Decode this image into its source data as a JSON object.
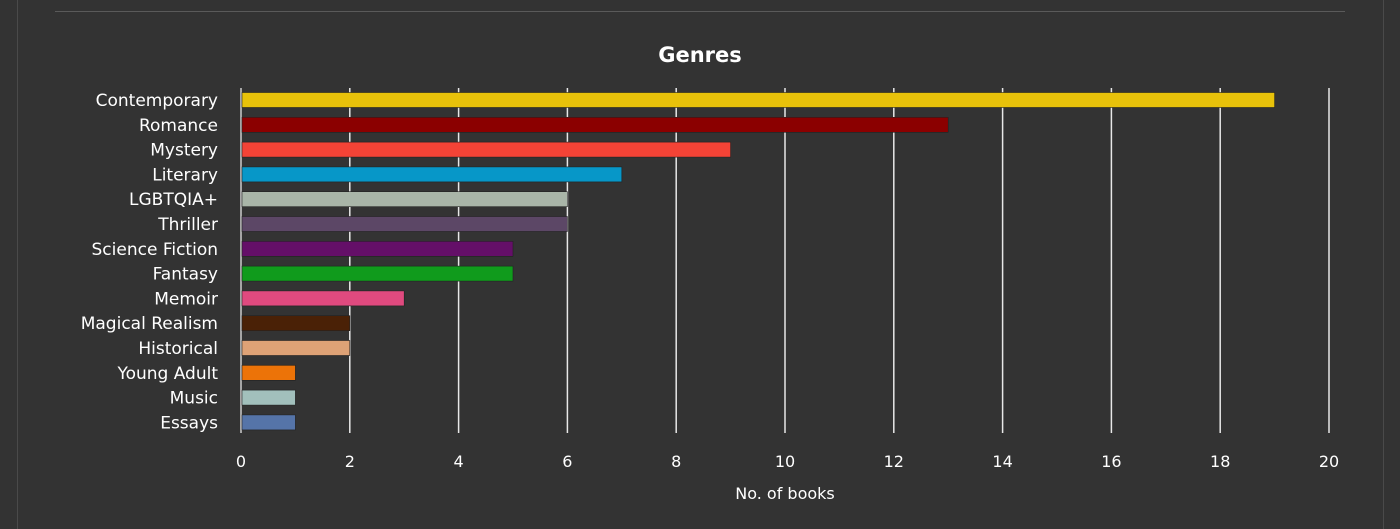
{
  "chart_data": {
    "type": "bar",
    "orientation": "horizontal",
    "title": "Genres",
    "xlabel": "No. of books",
    "ylabel": "",
    "xlim": [
      0,
      20
    ],
    "xticks": [
      0,
      2,
      4,
      6,
      8,
      10,
      12,
      14,
      16,
      18,
      20
    ],
    "grid": true,
    "categories": [
      "Contemporary",
      "Romance",
      "Mystery",
      "Literary",
      "LGBTQIA+",
      "Thriller",
      "Science Fiction",
      "Fantasy",
      "Memoir",
      "Magical Realism",
      "Historical",
      "Young Adult",
      "Music",
      "Essays"
    ],
    "values": [
      19,
      13,
      9,
      7,
      6,
      6,
      5,
      5,
      3,
      2,
      2,
      1,
      1,
      1
    ],
    "colors": [
      "#e8c20a",
      "#8b0000",
      "#f44336",
      "#0797c8",
      "#a9b5a8",
      "#5c4766",
      "#640f68",
      "#109b1c",
      "#e04a7f",
      "#4a2106",
      "#dea276",
      "#ec7308",
      "#a2c0bc",
      "#5574a8"
    ],
    "background": "#333333"
  }
}
